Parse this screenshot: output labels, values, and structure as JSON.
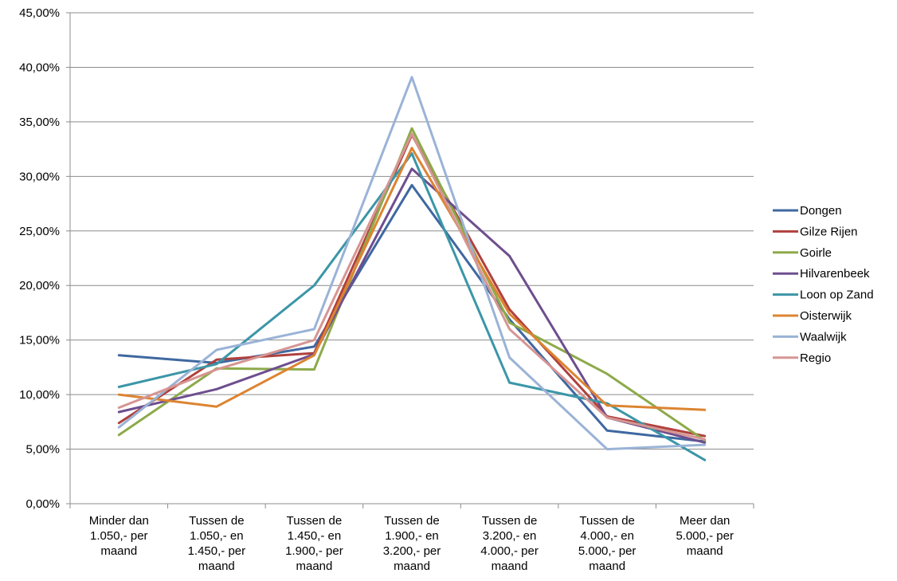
{
  "chart_data": {
    "type": "line",
    "categories": [
      [
        "Minder dan",
        "1.050,- per",
        "maand"
      ],
      [
        "Tussen de",
        "1.050,- en",
        "1.450,- per",
        "maand"
      ],
      [
        "Tussen de",
        "1.450,- en",
        "1.900,- per",
        "maand"
      ],
      [
        "Tussen de",
        "1.900,- en",
        "3.200,- per",
        "maand"
      ],
      [
        "Tussen de",
        "3.200,- en",
        "4.000,- per",
        "maand"
      ],
      [
        "Tussen de",
        "4.000,- en",
        "5.000,- per",
        "maand"
      ],
      [
        "Meer dan",
        "5.000,- per",
        "maand"
      ]
    ],
    "y_ticks": [
      "0,00%",
      "5,00%",
      "10,00%",
      "15,00%",
      "20,00%",
      "25,00%",
      "30,00%",
      "35,00%",
      "40,00%",
      "45,00%"
    ],
    "ylim": [
      0,
      45
    ],
    "grid": true,
    "legend_position": "right",
    "series": [
      {
        "name": "Dongen",
        "color": "#3F68A0",
        "values": [
          13.6,
          12.9,
          14.4,
          29.2,
          16.9,
          6.7,
          5.7
        ]
      },
      {
        "name": "Gilze Rijen",
        "color": "#B0413E",
        "values": [
          7.4,
          13.2,
          13.8,
          33.8,
          17.8,
          8.0,
          6.2
        ]
      },
      {
        "name": "Goirle",
        "color": "#8DAA4A",
        "values": [
          6.3,
          12.4,
          12.3,
          34.4,
          16.6,
          11.9,
          5.8
        ]
      },
      {
        "name": "Hilvarenbeek",
        "color": "#6E4E8E",
        "values": [
          8.4,
          10.5,
          13.7,
          30.7,
          22.7,
          7.9,
          5.6
        ]
      },
      {
        "name": "Loon op Zand",
        "color": "#3B96A7",
        "values": [
          10.7,
          12.8,
          20.0,
          32.1,
          11.1,
          9.2,
          4.0
        ]
      },
      {
        "name": "Oisterwijk",
        "color": "#DC8431",
        "values": [
          10.0,
          8.9,
          13.6,
          32.6,
          17.4,
          9.0,
          8.6
        ]
      },
      {
        "name": "Waalwijk",
        "color": "#9AB3D6",
        "values": [
          7.0,
          14.1,
          16.0,
          39.1,
          13.4,
          5.0,
          5.4
        ]
      },
      {
        "name": "Regio",
        "color": "#D69592",
        "values": [
          8.8,
          12.3,
          15.0,
          33.9,
          16.0,
          7.9,
          5.9
        ]
      }
    ]
  }
}
